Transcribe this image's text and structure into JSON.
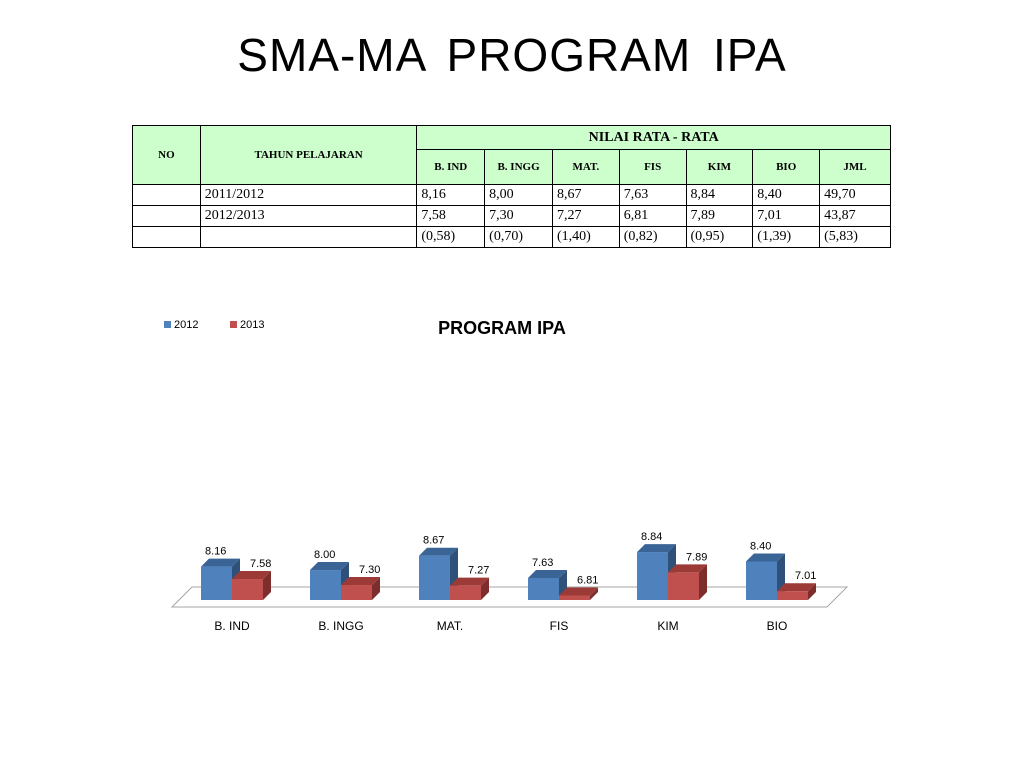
{
  "slide": {
    "title": "SMA-MA  PROGRAM  IPA"
  },
  "table": {
    "col_no": "NO",
    "col_year": "TAHUN PELAJARAN",
    "col_group": "NILAI RATA - RATA",
    "subjects": [
      "B. IND",
      "B. INGG",
      "MAT.",
      "FIS",
      "KIM",
      "BIO",
      "JML"
    ],
    "rows": [
      {
        "no": "",
        "year": "2011/2012",
        "values": [
          "8,16",
          "8,00",
          "8,67",
          "7,63",
          "8,84",
          "8,40",
          "49,70"
        ]
      },
      {
        "no": "",
        "year": "2012/2013",
        "values": [
          "7,58",
          "7,30",
          "7,27",
          "6,81",
          "7,89",
          "7,01",
          "43,87"
        ]
      },
      {
        "no": "",
        "year": "",
        "values": [
          "(0,58)",
          "(0,70)",
          "(1,40)",
          "(0,82)",
          "(0,95)",
          "(1,39)",
          " (5,83)"
        ]
      }
    ]
  },
  "chart_data": {
    "type": "bar",
    "title": "PROGRAM IPA",
    "categories": [
      "B. IND",
      "B. INGG",
      "MAT.",
      "FIS",
      "KIM",
      "BIO"
    ],
    "series": [
      {
        "name": "2012",
        "values": [
          8.16,
          8.0,
          8.67,
          7.63,
          8.84,
          8.4
        ],
        "labels": [
          "8.16",
          "8.00",
          "8.67",
          "7.63",
          "8.84",
          "8.40"
        ],
        "color": "#4f81bd"
      },
      {
        "name": "2013",
        "values": [
          7.58,
          7.3,
          7.27,
          6.81,
          7.89,
          7.01
        ],
        "labels": [
          "7.58",
          "7.30",
          "7.27",
          "6.81",
          "7.89",
          "7.01"
        ],
        "color": "#c0504d"
      }
    ],
    "legend": "top-left",
    "grid": false,
    "style": "3d-clustered-column"
  }
}
